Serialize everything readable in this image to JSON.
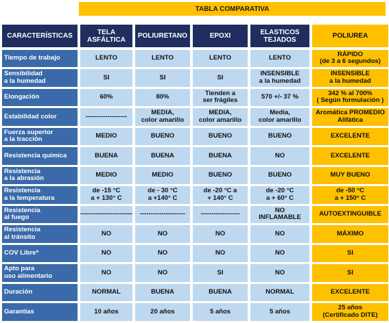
{
  "header": {
    "title": "TABLA COMPARATIVA"
  },
  "table": {
    "columns": [
      "CARACTERÍSTICAS",
      "TELA\nASFÁLTICA",
      "POLIURETANO",
      "EPOXI",
      "ELASTICOS\nTEJADOS",
      "POLIUREA"
    ],
    "rows": [
      [
        "Tiempo de trabajo",
        "LENTO",
        "LENTO",
        "LENTO",
        "LENTO",
        "RÁPIDO\n(de 3 a 6 segundos)"
      ],
      [
        "Sensibilidad\na la humedad",
        "SI",
        "SI",
        "SI",
        "INSENSIBLE\na la humedad",
        "INSENSIBLE\na la humedad"
      ],
      [
        "Elongación",
        "60%",
        "80%",
        "Tienden a\nser frágiles",
        "570 +/- 37 %",
        "342 % al 700%\n( Según formulación )"
      ],
      [
        "Estabilidad color",
        "-------------------",
        "MEDIA,\ncolor amarillo",
        "MEDIA,\ncolor amarillo",
        "Media,\ncolor amarillo",
        "Aromática PROMEDIO\nAlifática"
      ],
      [
        "Fuerza superior\na la tracción",
        "MEDIO",
        "BUENO",
        "BUENO",
        "BUENO",
        "EXCELENTE"
      ],
      [
        "Resistencia química",
        "BUENA",
        "BUENA",
        "BUENA",
        "NO",
        "EXCELENTE"
      ],
      [
        "Resistencia\na la abrasión",
        "MEDIO",
        "MEDIO",
        "BUENO",
        "BUENO",
        "MUY BUENO"
      ],
      [
        "Resistencia\na la temperatura",
        "de  -15 °C\na + 130° C",
        "de - 30 °C\na  +140° C",
        "de -20 °C a\n+ 140° C",
        "de -20 °C\na + 60° C",
        "de -50 °C\na + 150° C"
      ],
      [
        "Resistencia\nal fuego",
        "------------------------",
        "---------------------",
        "------------------",
        "NO\nINFLAMABLE",
        "AUTOEXTINGUIBLE"
      ],
      [
        "Resistencia\nal tránsito",
        "NO",
        "NO",
        "NO",
        "NO",
        "MÁXIMO"
      ],
      [
        "COV Libre*",
        "NO",
        "NO",
        "NO",
        "NO",
        "SI"
      ],
      [
        "Apto para\nuso alimentario",
        "NO",
        "NO",
        "SI",
        "NO",
        "SI"
      ],
      [
        "Duración",
        "NORMAL",
        "BUENA",
        "BUENA",
        "NORMAL",
        "EXCELENTE"
      ],
      [
        "Garantías",
        "10 años",
        "20 años",
        "5 años",
        "5 años",
        "25 años\n(Certificado DITE)"
      ]
    ]
  }
}
